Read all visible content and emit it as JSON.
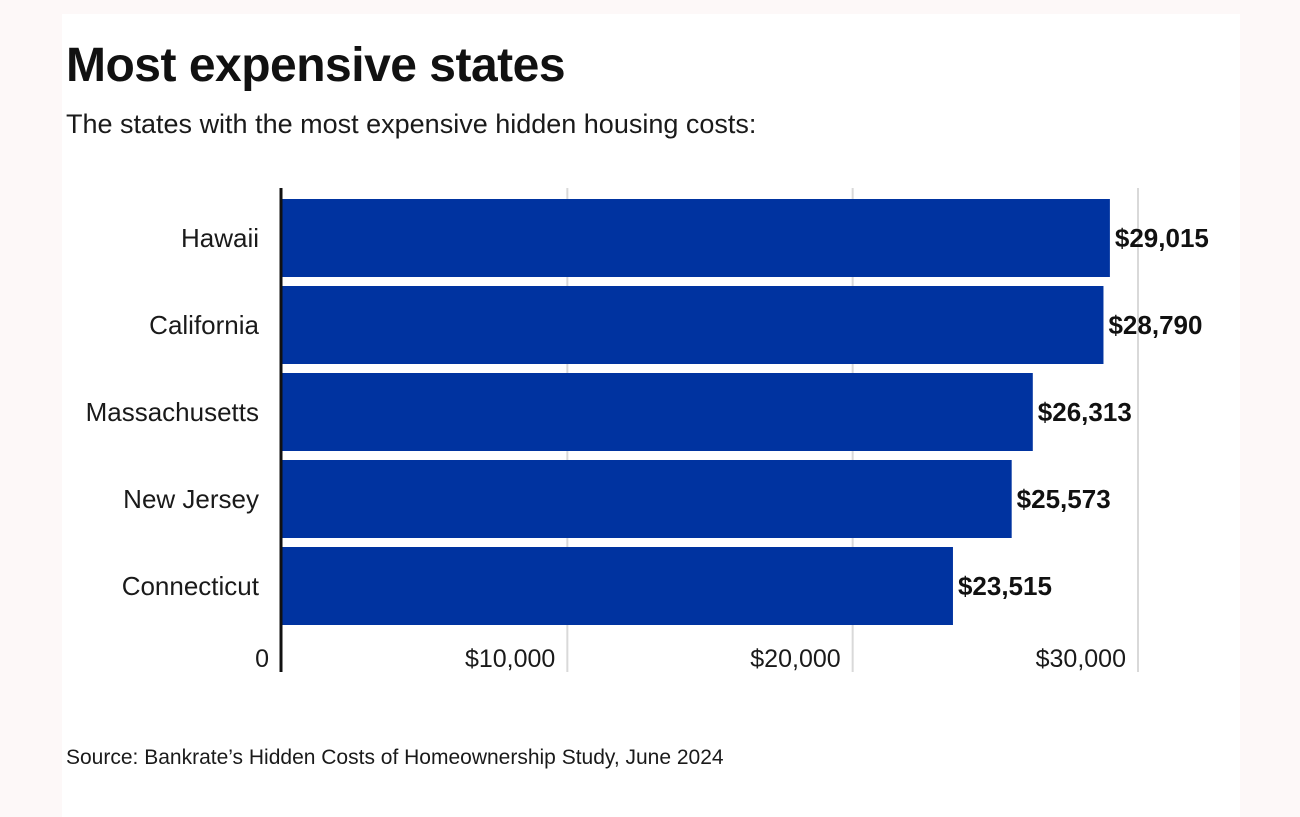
{
  "header": {
    "title": "Most expensive states",
    "subtitle": "The states with the most expensive hidden housing costs:"
  },
  "footer": {
    "source": "Source: Bankrate’s Hidden Costs of Homeownership Study, June 2024"
  },
  "colors": {
    "bar": "#0033a0",
    "gridline": "#d9d9d9",
    "axis": "#111111"
  },
  "chart_data": {
    "type": "bar",
    "orientation": "horizontal",
    "title": "Most expensive states",
    "subtitle": "The states with the most expensive hidden housing costs:",
    "categories": [
      "Hawaii",
      "California",
      "Massachusetts",
      "New Jersey",
      "Connecticut"
    ],
    "values": [
      29015,
      28790,
      26313,
      25573,
      23515
    ],
    "value_labels": [
      "$29,015",
      "$28,790",
      "$26,313",
      "$25,573",
      "$23,515"
    ],
    "xlim": [
      0,
      30000
    ],
    "x_ticks": [
      0,
      10000,
      20000,
      30000
    ],
    "x_tick_labels": [
      "0",
      "$10,000",
      "$20,000",
      "$30,000"
    ],
    "xlabel": "",
    "ylabel": "",
    "grid": true,
    "legend": "none"
  }
}
